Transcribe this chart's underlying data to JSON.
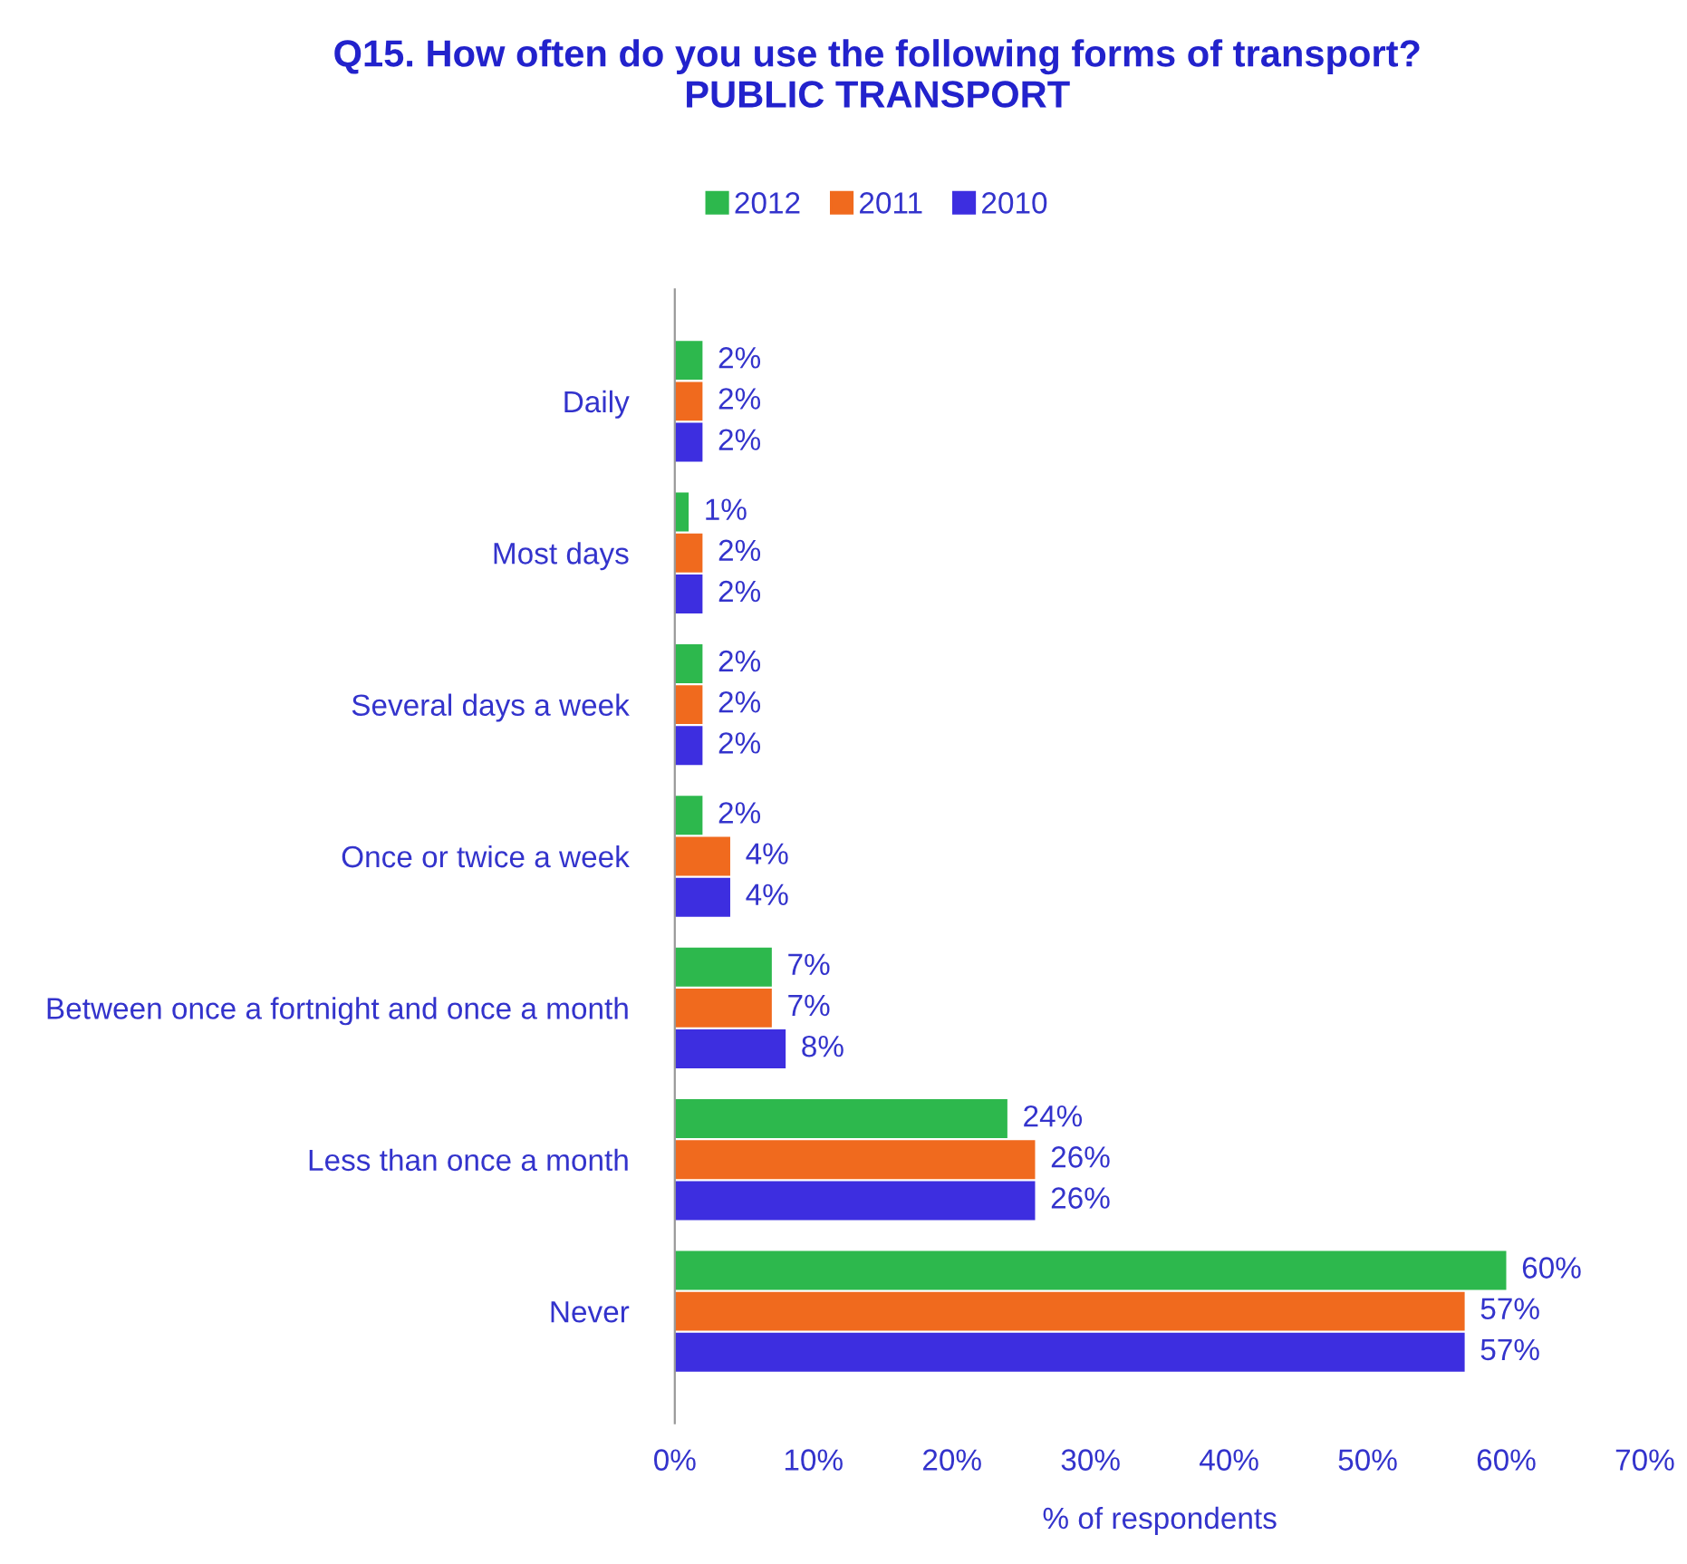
{
  "chart_data": {
    "type": "bar",
    "orientation": "horizontal",
    "title": "Q15. How often do you use the following forms of transport?\nPUBLIC TRANSPORT",
    "xlabel": "% of respondents",
    "categories": [
      "Daily",
      "Most days",
      "Several days a week",
      "Once or twice a week",
      "Between once a fortnight and once a month",
      "Less than once a month",
      "Never"
    ],
    "series": [
      {
        "name": "2012",
        "color": "#2db84d",
        "values": [
          2,
          1,
          2,
          2,
          7,
          24,
          60
        ],
        "value_labels": [
          "2%",
          "1%",
          "2%",
          "2%",
          "7%",
          "24%",
          "60%"
        ]
      },
      {
        "name": "2011",
        "color": "#f06a1e",
        "values": [
          2,
          2,
          2,
          4,
          7,
          26,
          57
        ],
        "value_labels": [
          "2%",
          "2%",
          "2%",
          "4%",
          "7%",
          "26%",
          "57%"
        ]
      },
      {
        "name": "2010",
        "color": "#3d2ee0",
        "values": [
          2,
          2,
          2,
          4,
          8,
          26,
          57
        ],
        "value_labels": [
          "2%",
          "2%",
          "2%",
          "4%",
          "8%",
          "26%",
          "57%"
        ]
      }
    ],
    "xlim": [
      0,
      70
    ],
    "xticks": [
      {
        "value": 0,
        "label": "0%"
      },
      {
        "value": 10,
        "label": "10%"
      },
      {
        "value": 20,
        "label": "20%"
      },
      {
        "value": 30,
        "label": "30%"
      },
      {
        "value": 40,
        "label": "40%"
      },
      {
        "value": 50,
        "label": "50%"
      },
      {
        "value": 60,
        "label": "60%"
      },
      {
        "value": 70,
        "label": "70%"
      }
    ],
    "legend": "top",
    "grid": false
  }
}
